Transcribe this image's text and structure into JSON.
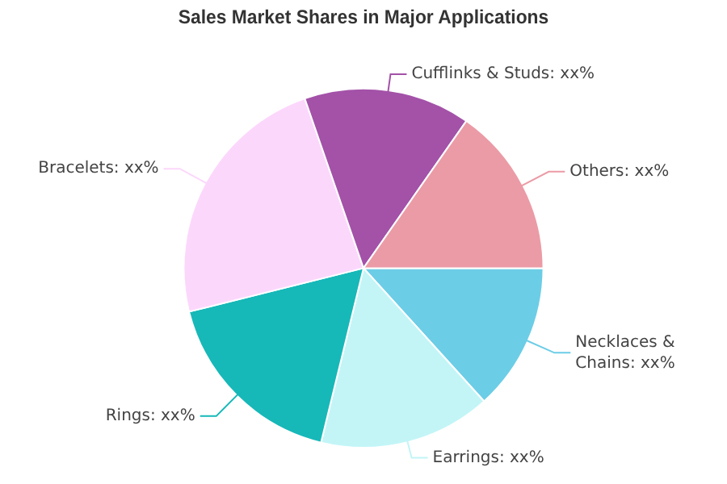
{
  "chart_data": {
    "type": "pie",
    "title": "Sales Market Shares in Major Applications",
    "categories": [
      "Necklaces & Chains",
      "Earrings",
      "Rings",
      "Bracelets",
      "Cufflinks & Studs",
      "Others"
    ],
    "values": [
      13.3,
      15.5,
      17.3,
      23.6,
      15,
      15.3
    ],
    "value_labels": [
      "xx%",
      "xx%",
      "xx%",
      "xx%",
      "xx%",
      "xx%"
    ],
    "colors": [
      "#6ccde6",
      "#c3f5f7",
      "#17b8b8",
      "#fcd7fc",
      "#a352a8",
      "#eb9ba6"
    ],
    "legend": false
  }
}
